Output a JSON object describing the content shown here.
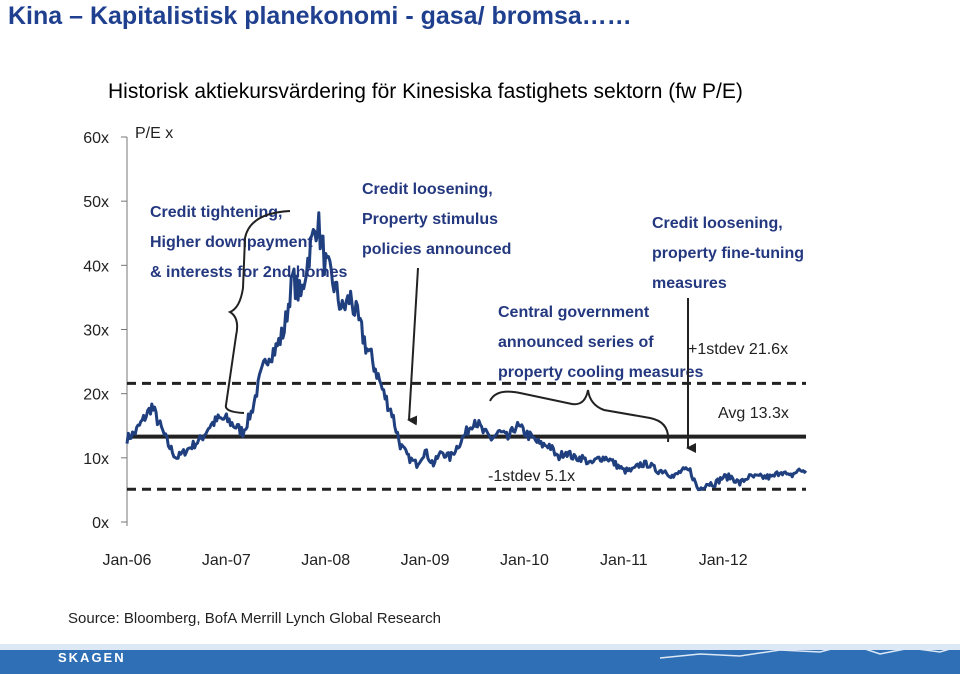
{
  "header": {
    "title": "Kina – Kapitalistisk planekonomi - gasa/ bromsa……",
    "subtitle": "Historisk aktiekursvärdering för Kinesiska fastighets sektorn (fw P/E)"
  },
  "footer": {
    "brand": "SKAGEN",
    "colors": {
      "bar": "#2e6fb5",
      "light": "#dce8f5",
      "text": "#ffffff"
    }
  },
  "chart_data": {
    "type": "line",
    "ylabel": "P/E x",
    "ylim": [
      0,
      60
    ],
    "yticks": [
      "60x",
      "50x",
      "40x",
      "30x",
      "20x",
      "10x",
      "0x"
    ],
    "xticks": [
      "Jan-06",
      "Jan-07",
      "Jan-08",
      "Jan-09",
      "Jan-10",
      "Jan-11",
      "Jan-12"
    ],
    "xlim": [
      "2006-01",
      "2012-11"
    ],
    "source": "Source: Bloomberg, BofA Merrill Lynch Global Research",
    "colors": {
      "series": "#1f3f7f",
      "reference": "#222222",
      "annotation": "#24387f"
    },
    "series": [
      {
        "x": [
          "2006-01",
          "2006-02",
          "2006-03",
          "2006-04",
          "2006-05",
          "2006-06",
          "2006-07",
          "2006-08",
          "2006-09",
          "2006-10",
          "2006-11",
          "2006-12",
          "2007-01",
          "2007-02",
          "2007-03",
          "2007-04",
          "2007-05",
          "2007-06",
          "2007-07",
          "2007-08",
          "2007-09",
          "2007-10",
          "2007-11",
          "2007-12",
          "2008-01",
          "2008-02",
          "2008-03",
          "2008-04",
          "2008-05",
          "2008-06",
          "2008-07",
          "2008-08",
          "2008-09",
          "2008-10",
          "2008-11",
          "2008-12",
          "2009-01",
          "2009-02",
          "2009-03",
          "2009-04",
          "2009-05",
          "2009-06",
          "2009-07",
          "2009-08",
          "2009-09",
          "2009-10",
          "2009-11",
          "2009-12",
          "2010-01",
          "2010-02",
          "2010-03",
          "2010-04",
          "2010-05",
          "2010-06",
          "2010-07",
          "2010-08",
          "2010-09",
          "2010-10",
          "2010-11",
          "2010-12",
          "2011-01",
          "2011-02",
          "2011-03",
          "2011-04",
          "2011-05",
          "2011-06",
          "2011-07",
          "2011-08",
          "2011-09",
          "2011-10",
          "2011-11",
          "2011-12",
          "2012-01",
          "2012-02",
          "2012-03",
          "2012-04",
          "2012-05",
          "2012-06",
          "2012-07",
          "2012-08",
          "2012-09",
          "2012-10",
          "2012-11"
        ],
        "values": [
          13,
          14,
          16,
          18,
          15,
          12,
          10,
          11,
          12,
          13,
          15,
          16,
          16,
          15,
          14,
          17,
          22,
          26,
          27,
          30,
          38,
          35,
          42,
          47,
          40,
          37,
          33,
          35,
          31,
          27,
          24,
          20,
          17,
          12,
          10,
          9,
          11,
          9,
          11,
          10,
          12,
          14,
          16,
          14,
          13,
          14,
          13,
          15,
          14,
          13,
          12,
          12,
          10,
          11,
          10,
          10,
          9,
          10,
          10,
          9,
          8,
          8,
          9,
          9,
          8,
          8,
          7,
          8,
          8,
          5,
          6,
          6,
          7,
          7,
          6,
          7,
          7,
          7,
          7,
          8,
          7,
          8,
          8
        ]
      }
    ],
    "reference_lines": [
      {
        "label": "+1stdev 21.6x",
        "value": 21.6,
        "style": "dashed"
      },
      {
        "label": "Avg 13.3x",
        "value": 13.3,
        "style": "solid"
      },
      {
        "label": "-1stdev 5.1x",
        "value": 5.1,
        "style": "dashed"
      }
    ],
    "annotations": [
      {
        "text": [
          "Credit tightening,",
          "Higher downpayment",
          "& interests for 2nd homes"
        ]
      },
      {
        "text": [
          "Credit loosening,",
          "Property stimulus",
          "policies announced"
        ]
      },
      {
        "text": [
          "Central government",
          "announced series of",
          "property cooling measures"
        ]
      },
      {
        "text": [
          "Credit loosening,",
          "property fine-tuning",
          "measures"
        ]
      }
    ]
  }
}
